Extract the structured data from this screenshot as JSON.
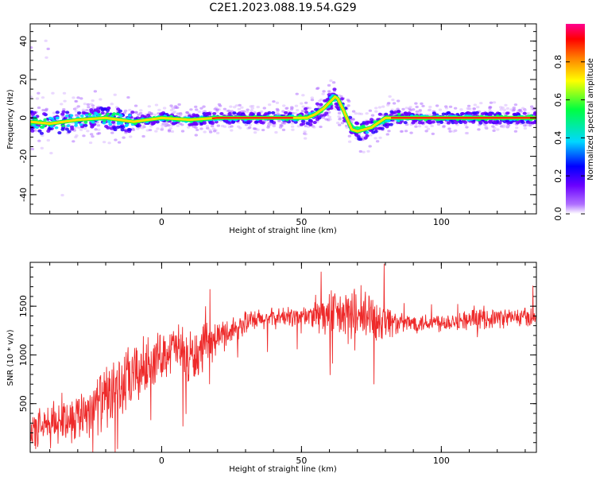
{
  "figure_title": "C2E1.2023.088.19.54.G29",
  "colors": {
    "snr_line": "#ee2a2a",
    "axes": "#000000"
  },
  "chart_data": [
    {
      "type": "heatmap",
      "title": "",
      "xlabel": "Height of straight line (km)",
      "ylabel": "Frequency (Hz)",
      "xlim": [
        -47,
        134
      ],
      "ylim": [
        -50,
        49
      ],
      "x_ticks": [
        0,
        50,
        100
      ],
      "y_ticks": [
        -40,
        -20,
        0,
        20,
        40
      ],
      "colorbar": {
        "label": "Normalized spectral amplitude",
        "range": [
          0,
          1
        ],
        "ticks": [
          0.0,
          0.2,
          0.4,
          0.6,
          0.8
        ],
        "colormap": [
          "#ffffff",
          "#b070ff",
          "#6a00ff",
          "#0000ff",
          "#00d8ff",
          "#00ff40",
          "#ffff00",
          "#ff8000",
          "#ff0000",
          "#ff0090"
        ]
      },
      "ridge_frequency": {
        "x": [
          -47,
          -40,
          -30,
          -20,
          -10,
          0,
          10,
          20,
          30,
          40,
          49,
          52,
          55,
          58,
          60,
          62,
          63,
          65,
          68,
          70,
          75,
          80,
          85,
          100,
          120,
          134
        ],
        "y": [
          -2,
          -3,
          -1,
          0,
          -2,
          0,
          -1,
          0,
          0,
          0,
          0,
          0,
          2,
          5,
          8,
          11,
          10,
          4,
          -6,
          -7,
          -5,
          0,
          0,
          0,
          0,
          0
        ]
      }
    },
    {
      "type": "line",
      "title": "",
      "xlabel": "Height of straight line (km)",
      "ylabel": "SNR (10 * v/v)",
      "xlim": [
        -47,
        134
      ],
      "ylim": [
        0,
        1950
      ],
      "x_ticks": [
        0,
        50,
        100
      ],
      "y_ticks": [
        500,
        1000,
        1500
      ],
      "envelope": {
        "x": [
          -47,
          -40,
          -30,
          -20,
          -12,
          -5,
          0,
          5,
          10,
          15,
          20,
          30,
          40,
          50,
          55,
          60,
          65,
          70,
          75,
          80,
          85,
          90,
          100,
          110,
          120,
          134
        ],
        "mean": [
          200,
          280,
          380,
          560,
          720,
          900,
          1000,
          1080,
          950,
          1050,
          1180,
          1330,
          1380,
          1400,
          1400,
          1410,
          1400,
          1380,
          1380,
          1360,
          1320,
          1330,
          1340,
          1360,
          1380,
          1390
        ],
        "spread": [
          230,
          260,
          300,
          380,
          420,
          360,
          280,
          300,
          380,
          280,
          200,
          150,
          120,
          130,
          200,
          280,
          330,
          380,
          330,
          250,
          120,
          120,
          120,
          120,
          120,
          120
        ]
      }
    }
  ]
}
